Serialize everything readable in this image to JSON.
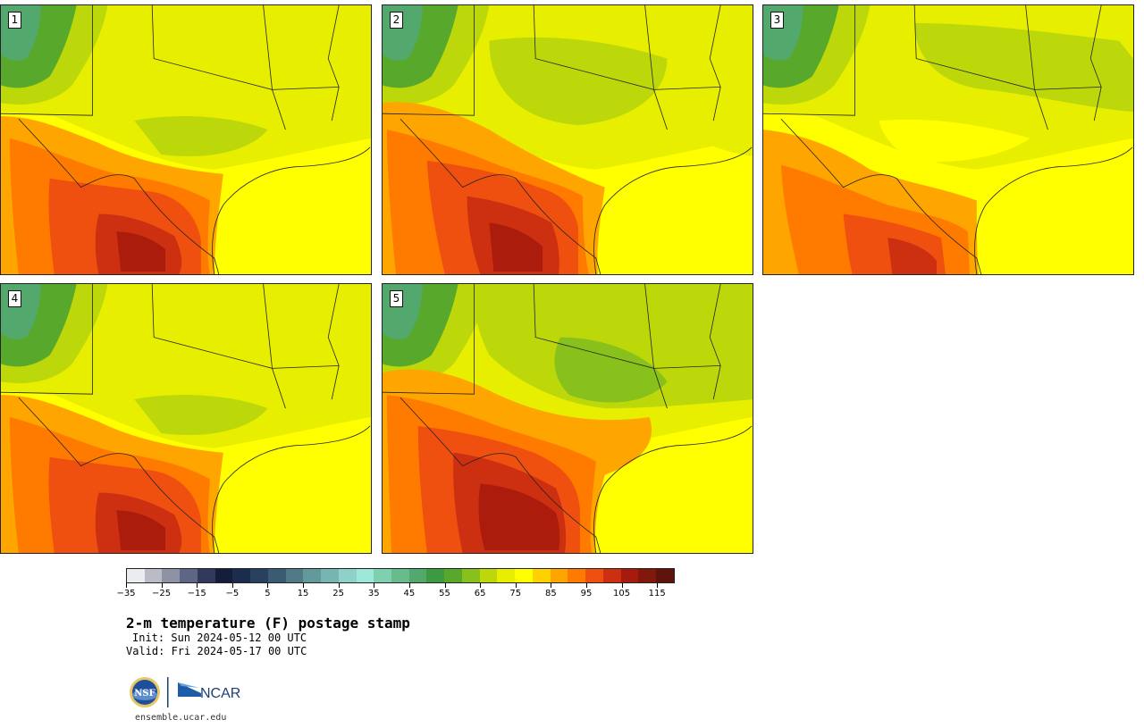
{
  "figure": {
    "title": "2-m temperature (F) postage stamp",
    "init": "Init: Sun 2024-05-12 00 UTC",
    "valid": "Valid: Fri 2024-05-17 00 UTC",
    "site": "ensemble.ucar.edu",
    "logo_text": "NCAR",
    "nsf_text": "NSF"
  },
  "panels": [
    {
      "label": "1",
      "scenario": "hot-south"
    },
    {
      "label": "2",
      "scenario": "hot-southeast"
    },
    {
      "label": "3",
      "scenario": "mild"
    },
    {
      "label": "4",
      "scenario": "hot-south"
    },
    {
      "label": "5",
      "scenario": "hottest"
    }
  ],
  "colorbar": {
    "min": -35,
    "max": 120,
    "step": 5,
    "tick_labels": [
      "−35",
      "−25",
      "−15",
      "−5",
      "5",
      "15",
      "25",
      "35",
      "45",
      "55",
      "65",
      "75",
      "85",
      "95",
      "105",
      "115"
    ],
    "colors": [
      "#ebecef",
      "#b9bbc6",
      "#8f92a5",
      "#5f6585",
      "#313a5c",
      "#141e3b",
      "#1b2c4d",
      "#28415f",
      "#3a5b71",
      "#4f7a86",
      "#62999b",
      "#77b5b3",
      "#8dd1c9",
      "#9de8d9",
      "#7fd0ae",
      "#68bc8c",
      "#53a86d",
      "#3c9a40",
      "#58a82b",
      "#88c01c",
      "#bcd80b",
      "#e7ee00",
      "#ffff00",
      "#ffd100",
      "#ffa500",
      "#ff7b00",
      "#ef5010",
      "#cc3010",
      "#a71b0c",
      "#82170b",
      "#5f130a"
    ]
  }
}
